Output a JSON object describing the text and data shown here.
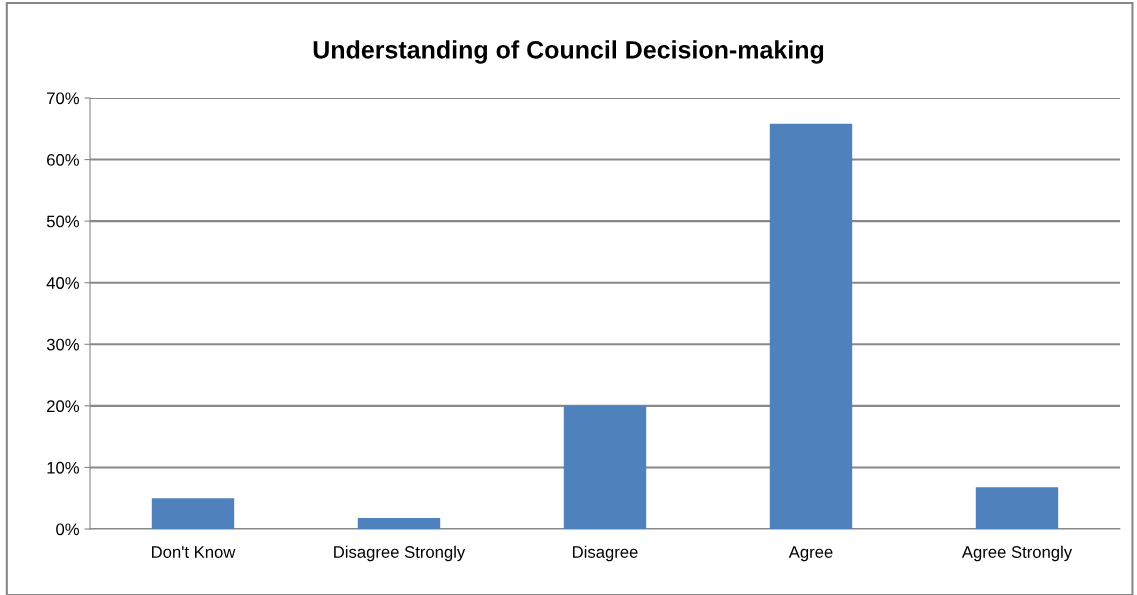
{
  "chart_data": {
    "type": "bar",
    "title": "Understanding of Council Decision-making",
    "categories": [
      "Don't Know",
      "Disagree Strongly",
      "Disagree",
      "Agree",
      "Agree Strongly"
    ],
    "values": [
      5,
      1.8,
      20,
      65.8,
      6.8
    ],
    "color": "#4f81bd",
    "ylim": [
      0,
      70
    ],
    "yticks": [
      {
        "value": 0,
        "label": "0%"
      },
      {
        "value": 10,
        "label": "10%"
      },
      {
        "value": 20,
        "label": "20%"
      },
      {
        "value": 30,
        "label": "30%"
      },
      {
        "value": 40,
        "label": "40%"
      },
      {
        "value": 50,
        "label": "50%"
      },
      {
        "value": 60,
        "label": "60%"
      },
      {
        "value": 70,
        "label": "70%"
      }
    ],
    "grid": "y",
    "legend": false
  }
}
